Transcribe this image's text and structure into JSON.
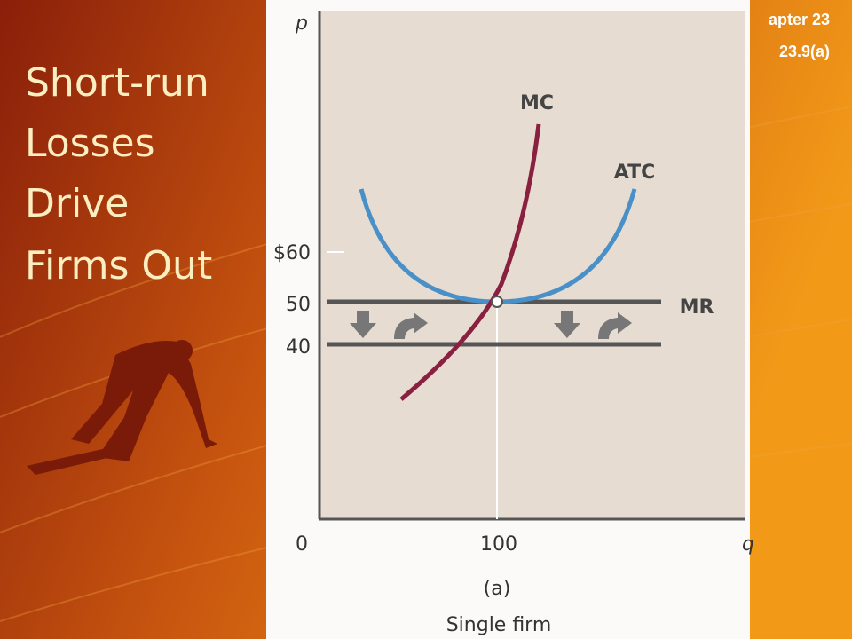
{
  "slide": {
    "title_lines": [
      "Short-run",
      "Losses",
      "Drive",
      "Firms Out"
    ],
    "corner": [
      "apter 23",
      "23.9(a)"
    ]
  },
  "figure": {
    "y_axis_label": "p",
    "x_axis_label": "q",
    "y_tick_labels": [
      "$60",
      "50",
      "40"
    ],
    "x_tick_labels": [
      "0",
      "100"
    ],
    "curve_labels": [
      "MC",
      "ATC",
      "MR"
    ],
    "panel_label": "(a)",
    "caption": "Single firm"
  }
}
